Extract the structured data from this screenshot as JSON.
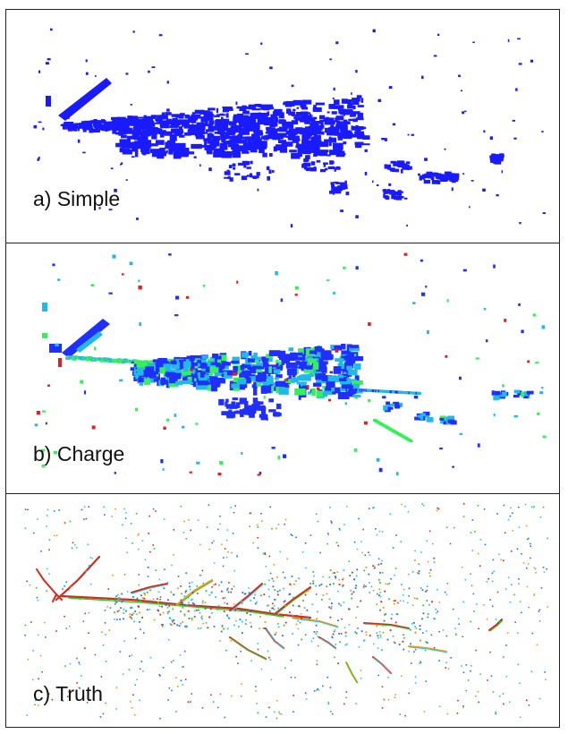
{
  "panels": [
    {
      "id": "simple",
      "label": "a) Simple"
    },
    {
      "id": "charge",
      "label": "b) Charge"
    },
    {
      "id": "truth",
      "label": "c) Truth"
    }
  ],
  "colors": {
    "simple_blue": "#1a1aff",
    "charge_blue": "#1f2fff",
    "charge_cyan": "#22b8e8",
    "charge_green": "#36f05a",
    "charge_red": "#e02020",
    "truth_red": "#d42a1a",
    "truth_green": "#2ecc2e",
    "truth_blue": "#2a6fe0",
    "truth_cyan": "#35c8d8",
    "truth_orange": "#e89a1a"
  }
}
